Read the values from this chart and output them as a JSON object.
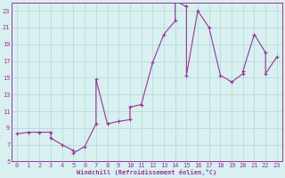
{
  "xlabel": "Windchill (Refroidissement éolien,°C)",
  "line_color": "#993399",
  "bg_color": "#d8f0f0",
  "grid_color": "#b8dada",
  "xlim": [
    -0.5,
    23.5
  ],
  "ylim": [
    5,
    24
  ],
  "xticks": [
    0,
    1,
    2,
    3,
    4,
    5,
    6,
    7,
    8,
    9,
    10,
    11,
    12,
    13,
    14,
    15,
    16,
    17,
    18,
    19,
    20,
    21,
    22,
    23
  ],
  "yticks": [
    5,
    7,
    9,
    11,
    13,
    15,
    17,
    19,
    21,
    23
  ],
  "series": [
    [
      0,
      8.3
    ],
    [
      1,
      8.5
    ],
    [
      2,
      8.5
    ],
    [
      3,
      8.5
    ],
    [
      3,
      7.8
    ],
    [
      4,
      7.0
    ],
    [
      5,
      6.3
    ],
    [
      5,
      6.0
    ],
    [
      6,
      6.8
    ],
    [
      7,
      9.5
    ],
    [
      7,
      14.8
    ],
    [
      8,
      9.5
    ],
    [
      9,
      9.8
    ],
    [
      10,
      10.0
    ],
    [
      10,
      11.5
    ],
    [
      11,
      11.8
    ],
    [
      12,
      16.8
    ],
    [
      13,
      20.2
    ],
    [
      14,
      21.8
    ],
    [
      14,
      24.2
    ],
    [
      15,
      23.5
    ],
    [
      15,
      15.3
    ],
    [
      16,
      23.0
    ],
    [
      17,
      21.0
    ],
    [
      18,
      15.3
    ],
    [
      19,
      14.5
    ],
    [
      20,
      15.5
    ],
    [
      20,
      15.8
    ],
    [
      21,
      20.2
    ],
    [
      22,
      18.0
    ],
    [
      22,
      15.5
    ],
    [
      23,
      17.5
    ]
  ]
}
